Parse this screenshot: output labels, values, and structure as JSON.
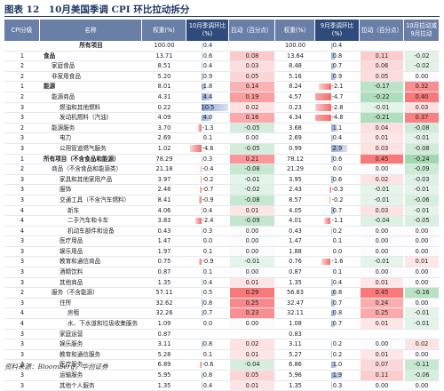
{
  "header": {
    "title": "图表 12　10月美国季调 CPI 环比拉动拆分"
  },
  "table": {
    "columns": [
      "CPI分级",
      "名称",
      "权重(%)",
      "10月季调环比(%)",
      "拉动（百分点）",
      "权重(%)",
      "9月季调环比(%)",
      "拉动（百分点）",
      "10月拉动减9月拉动"
    ],
    "rows": [
      [
        null,
        "所有项目",
        "100.00",
        "0.4",
        null,
        "100.00",
        "0.4",
        null,
        null
      ],
      [
        "1",
        "食品",
        "13.71",
        "0.6",
        "0.08",
        "13.64",
        "0.8",
        "0.11",
        "-0.02"
      ],
      [
        "2",
        "家庭食品",
        "8.51",
        "0.4",
        "0.03",
        "8.48",
        "0.7",
        "0.06",
        "-0.02"
      ],
      [
        "2",
        "非家用食品",
        "5.20",
        "0.9",
        "0.05",
        "5.16",
        "0.9",
        "0.05",
        "0.00"
      ],
      [
        "1",
        "能源",
        "8.01",
        "1.8",
        "0.14",
        "8.24",
        "-2.1",
        "-0.17",
        "0.32"
      ],
      [
        "2",
        "能源商品",
        "4.31",
        "4.4",
        "0.19",
        "4.57",
        "-4.7",
        "-0.22",
        "0.40"
      ],
      [
        "3",
        "燃油和其他燃料",
        "0.22",
        "10.5",
        "0.02",
        "0.23",
        "-2.8",
        "-0.01",
        "0.03"
      ],
      [
        "3",
        "发动机燃料（汽油）",
        "4.09",
        "4.0",
        "0.16",
        "4.34",
        "-4.8",
        "-0.21",
        "0.37"
      ],
      [
        "2",
        "能源服务",
        "3.70",
        "-1.3",
        "-0.05",
        "3.68",
        "1.1",
        "0.04",
        "-0.08"
      ],
      [
        "3",
        "电力",
        "2.69",
        "0.1",
        "0.00",
        "2.69",
        "0.4",
        "0.01",
        "-0.01"
      ],
      [
        "3",
        "公用管道燃气服务",
        "1.02",
        "-4.6",
        "-0.05",
        "0.99",
        "2.9",
        "0.03",
        "-0.08"
      ],
      [
        "1",
        "所有项目（不含食品和能源）",
        "78.29",
        "0.3",
        "0.21",
        "78.12",
        "0.6",
        "0.45",
        "-0.24"
      ],
      [
        "2",
        "商品（不含食品和能源类）",
        "21.18",
        "-0.4",
        "-0.08",
        "21.29",
        "0.0",
        "0.00",
        "-0.09"
      ],
      [
        "3",
        "家具和其他家用产品",
        "3.97",
        "-0.2",
        "-0.01",
        "3.95",
        "0.6",
        "0.02",
        "-0.03"
      ],
      [
        "3",
        "服饰",
        "2.48",
        "-0.7",
        "-0.02",
        "2.43",
        "-0.3",
        "-0.01",
        "-0.01"
      ],
      [
        "3",
        "交通工具（不含汽车燃料）",
        "8.41",
        "-0.9",
        "-0.08",
        "8.57",
        "-0.2",
        "-0.01",
        "-0.06"
      ],
      [
        "4",
        "新车",
        "4.06",
        "0.4",
        "0.01",
        "4.05",
        "0.7",
        "0.03",
        "-0.01"
      ],
      [
        "4",
        "二手汽车和卡车",
        "3.83",
        "-2.4",
        "-0.09",
        "4.01",
        "-1.1",
        "-0.04",
        "-0.05"
      ],
      [
        "4",
        "机动车部件和设备",
        "0.43",
        "0.3",
        "0.00",
        "0.43",
        "0.2",
        "0.00",
        "0.00"
      ],
      [
        "3",
        "医疗用品",
        "1.47",
        "0.0",
        "0.00",
        "1.47",
        "0.1",
        "0.00",
        "0.00"
      ],
      [
        "3",
        "娱乐用品",
        "1.97",
        "0.1",
        "0.00",
        "1.88",
        "0.0",
        "0.00",
        "0.00"
      ],
      [
        "3",
        "教育和通信商品",
        "0.75",
        "-0.9",
        "-0.01",
        "0.76",
        "-1.6",
        "-0.01",
        "0.01"
      ],
      [
        "3",
        "酒精饮料",
        "0.87",
        "0.1",
        "0.00",
        "0.87",
        "0.1",
        "0.00",
        "0.00"
      ],
      [
        "3",
        "其他商品",
        "1.35",
        "0.4",
        "0.01",
        "1.35",
        "0.4",
        "0.01",
        "0.00"
      ],
      [
        "2",
        "服务（不含能源）",
        "57.11",
        "0.5",
        "0.29",
        "56.83",
        "0.8",
        "0.45",
        "-0.16"
      ],
      [
        "3",
        "住所",
        "32.62",
        "0.8",
        "0.25",
        "32.47",
        "0.7",
        "0.24",
        "0.00"
      ],
      [
        "4",
        "房租",
        "32.26",
        "0.7",
        "0.23",
        "32.11",
        "0.8",
        "0.25",
        "-0.01"
      ],
      [
        "4",
        "水、下水道和垃圾收集服务",
        "1.09",
        "0.0",
        "0.00",
        "1.08",
        "0.7",
        "0.01",
        "-0.01"
      ],
      [
        "3",
        "家庭运营",
        "0.87",
        null,
        null,
        "0.83",
        null,
        null,
        null
      ],
      [
        "3",
        "娱乐服务",
        "3.11",
        "0.8",
        "0.02",
        "3.11",
        "0.2",
        "0.00",
        "0.02"
      ],
      [
        "3",
        "教育和通信服务",
        "5.28",
        "0.1",
        "0.01",
        "5.27",
        "0.2",
        "0.01",
        "0.00"
      ],
      [
        "3",
        "医疗服务",
        "6.89",
        "-0.6",
        "-0.04",
        "6.86",
        "1.0",
        "0.07",
        "-0.11"
      ],
      [
        "3",
        "运输服务",
        "5.95",
        "0.8",
        "0.05",
        "5.96",
        "1.9",
        "0.11",
        "-0.06"
      ],
      [
        "3",
        "其他个人服务",
        "1.35",
        "0.4",
        "0.01",
        "1.35",
        "0.3",
        "0.00",
        "0.00"
      ]
    ]
  },
  "footer": {
    "source": "资料来源：Bloomberg，华创证券"
  }
}
